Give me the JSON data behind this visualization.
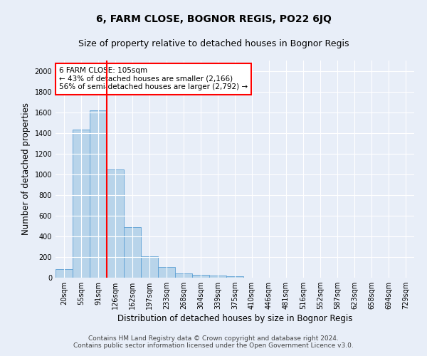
{
  "title": "6, FARM CLOSE, BOGNOR REGIS, PO22 6JQ",
  "subtitle": "Size of property relative to detached houses in Bognor Regis",
  "xlabel": "Distribution of detached houses by size in Bognor Regis",
  "ylabel": "Number of detached properties",
  "bin_labels": [
    "20sqm",
    "55sqm",
    "91sqm",
    "126sqm",
    "162sqm",
    "197sqm",
    "233sqm",
    "268sqm",
    "304sqm",
    "339sqm",
    "375sqm",
    "410sqm",
    "446sqm",
    "481sqm",
    "516sqm",
    "552sqm",
    "587sqm",
    "623sqm",
    "658sqm",
    "694sqm",
    "729sqm"
  ],
  "bar_values": [
    80,
    1430,
    1620,
    1050,
    490,
    205,
    100,
    42,
    28,
    20,
    15,
    0,
    0,
    0,
    0,
    0,
    0,
    0,
    0,
    0,
    0
  ],
  "bar_color": "#b8d4ea",
  "bar_edge_color": "#5a9fd4",
  "red_line_x": 2.5,
  "annotation_text": "6 FARM CLOSE: 105sqm\n← 43% of detached houses are smaller (2,166)\n56% of semi-detached houses are larger (2,792) →",
  "annotation_box_color": "white",
  "annotation_box_edge_color": "red",
  "ylim": [
    0,
    2100
  ],
  "yticks": [
    0,
    200,
    400,
    600,
    800,
    1000,
    1200,
    1400,
    1600,
    1800,
    2000
  ],
  "background_color": "#e8eef8",
  "grid_color": "white",
  "footer_text": "Contains HM Land Registry data © Crown copyright and database right 2024.\nContains public sector information licensed under the Open Government Licence v3.0.",
  "title_fontsize": 10,
  "subtitle_fontsize": 9,
  "xlabel_fontsize": 8.5,
  "ylabel_fontsize": 8.5,
  "tick_fontsize": 7,
  "annotation_fontsize": 7.5,
  "footer_fontsize": 6.5
}
